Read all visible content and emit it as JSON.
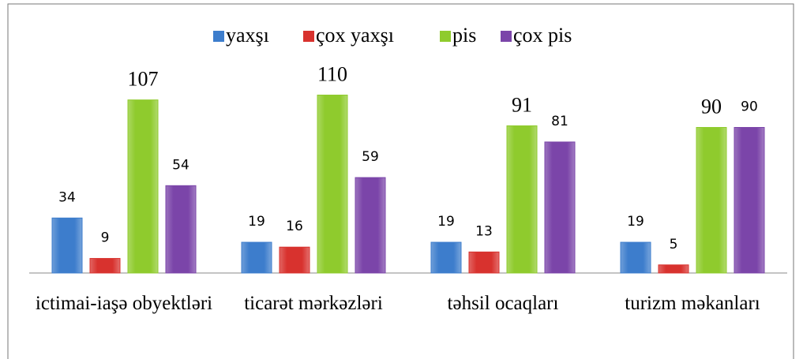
{
  "chart_data": {
    "type": "bar",
    "categories": [
      "ictimai-iaşə obyektləri",
      "ticarət mərkəzləri",
      "təhsil ocaqları",
      "turizm məkanları"
    ],
    "series": [
      {
        "name": "yaxşı",
        "color": "#3d7dcc",
        "values": [
          34,
          19,
          19,
          19
        ]
      },
      {
        "name": "çox yaxşı",
        "color": "#d8322e",
        "values": [
          9,
          16,
          13,
          5
        ]
      },
      {
        "name": "pis",
        "color": "#8fcb2d",
        "values": [
          107,
          110,
          91,
          90
        ]
      },
      {
        "name": "çox pis",
        "color": "#7b45a9",
        "values": [
          54,
          59,
          81,
          90
        ]
      }
    ],
    "legend": "top"
  }
}
